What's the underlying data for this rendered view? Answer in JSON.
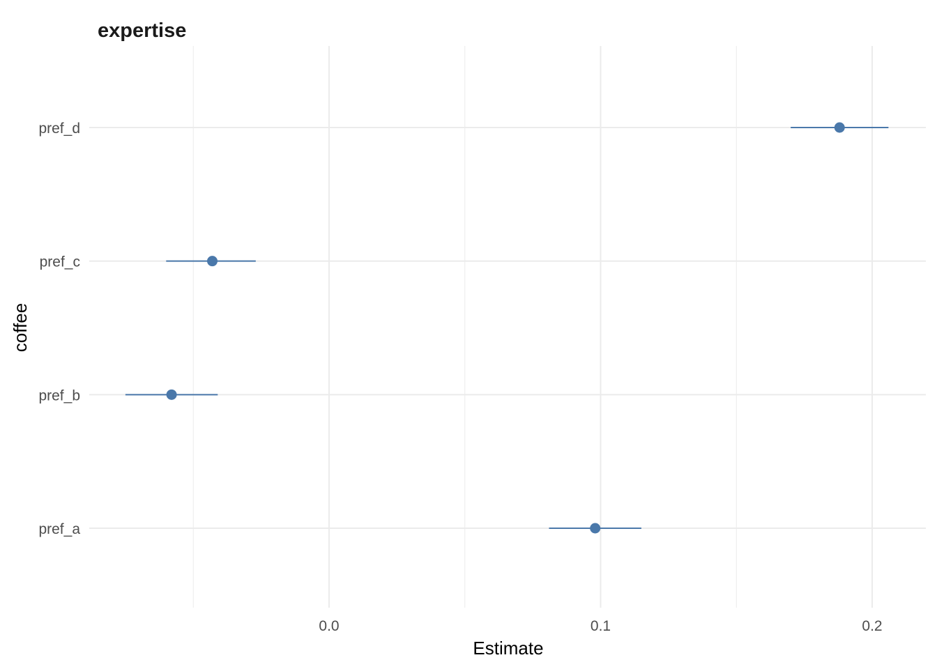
{
  "chart_data": {
    "type": "scatter",
    "subtype": "coefficient-plot",
    "title": "expertise",
    "xlabel": "Estimate",
    "ylabel": "coffee",
    "categories": [
      "pref_a",
      "pref_b",
      "pref_c",
      "pref_d"
    ],
    "points": [
      {
        "category": "pref_a",
        "estimate": 0.098,
        "low": 0.081,
        "high": 0.115
      },
      {
        "category": "pref_b",
        "estimate": -0.058,
        "low": -0.075,
        "high": -0.041
      },
      {
        "category": "pref_c",
        "estimate": -0.043,
        "low": -0.06,
        "high": -0.027
      },
      {
        "category": "pref_d",
        "estimate": 0.188,
        "low": 0.17,
        "high": 0.206
      }
    ],
    "x_ticks": [
      {
        "value": 0.0,
        "label": "0.0"
      },
      {
        "value": 0.1,
        "label": "0.1"
      },
      {
        "value": 0.2,
        "label": "0.2"
      }
    ],
    "x_minor_ticks": [
      -0.05,
      0.05,
      0.15
    ],
    "xlim": [
      -0.087,
      0.22
    ],
    "grid": true,
    "colors": {
      "point": "#4a78aa",
      "grid": "#ebebeb",
      "text": "#4d4d4d"
    }
  }
}
